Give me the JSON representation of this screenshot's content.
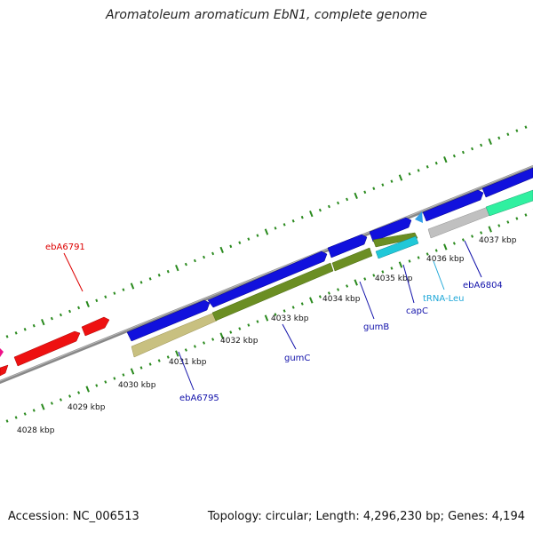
{
  "title": "Aromatoleum aromaticum EbN1, complete genome",
  "accession": "Accession: NC_006513",
  "summary": "Topology: circular; Length: 4,296,230 bp; Genes: 4,194",
  "colors": {
    "backbone": "#8a8a8a",
    "tick": "#2a8a1e",
    "red_gene": "#ee1111",
    "blue_gene": "#1111dd",
    "olive_gene": "#6b8e23",
    "tan_gene": "#c8c080",
    "cyan_gene": "#20c8d8",
    "gray_gene": "#c0c0c0",
    "mint_gene": "#30f0a0",
    "magenta_gene": "#ee1188"
  },
  "ticks": [
    "4028 kbp",
    "4029 kbp",
    "4030 kbp",
    "4031 kbp",
    "4032 kbp",
    "4033 kbp",
    "4034 kbp",
    "4035 kbp",
    "4036 kbp",
    "4037 kbp"
  ],
  "gene_labels": {
    "ebA6791": "ebA6791",
    "ebA6795": "ebA6795",
    "gumC": "gumC",
    "gumB": "gumB",
    "capC": "capC",
    "tRNA_Leu": "tRNA-Leu",
    "ebA6804": "ebA6804"
  }
}
